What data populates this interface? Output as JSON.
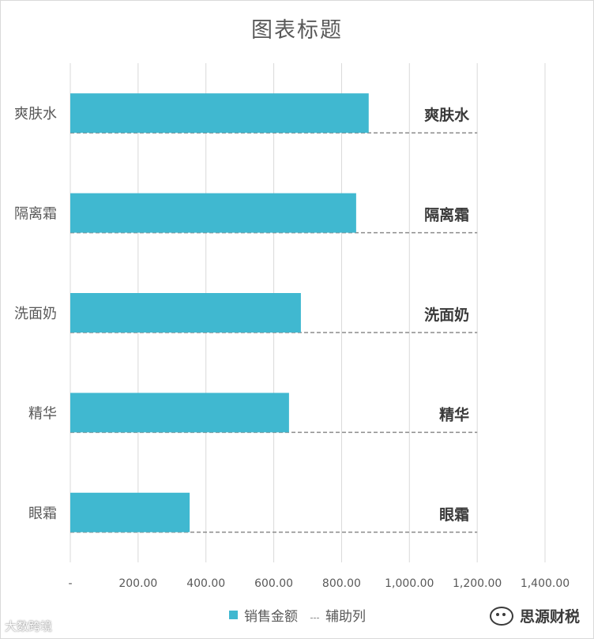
{
  "chart_data": {
    "type": "bar",
    "orientation": "horizontal",
    "title": "图表标题",
    "categories": [
      "爽肤水",
      "隔离霜",
      "洗面奶",
      "精华",
      "眼霜"
    ],
    "series": [
      {
        "name": "销售金额",
        "values": [
          880,
          843,
          680,
          645,
          352
        ],
        "color": "#40b8d0"
      },
      {
        "name": "辅助列",
        "values": [
          1200,
          1200,
          1200,
          1200,
          1200
        ],
        "color": "#8c8c8c"
      }
    ],
    "xlim": [
      0,
      1400
    ],
    "xticks": [
      "-",
      "200.00",
      "400.00",
      "600.00",
      "800.00",
      "1,000.00",
      "1,200.00",
      "1,400.00"
    ],
    "xtick_values": [
      0,
      200,
      400,
      600,
      800,
      1000,
      1200,
      1400
    ],
    "grid": true,
    "legend": "bottom"
  },
  "watermarks": {
    "left": "大数跨境",
    "right": "思源财税"
  }
}
